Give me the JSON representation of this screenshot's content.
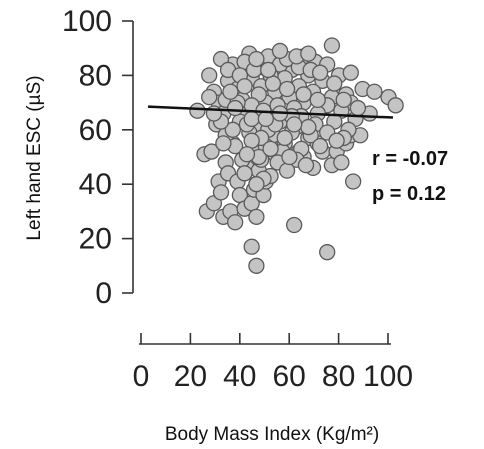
{
  "chart_data": {
    "type": "scatter",
    "xlabel": "Body  Mass  Index (Kg/m²)",
    "ylabel": "Left  hand  ESC (µS)",
    "xlim": [
      0,
      100
    ],
    "ylim": [
      0,
      100
    ],
    "xticks": [
      "0",
      "20",
      "40",
      "60",
      "80",
      "100"
    ],
    "yticks": [
      "0",
      "20",
      "40",
      "60",
      "80",
      "100"
    ],
    "grid": false,
    "annotations": {
      "r": "r = -0.07",
      "p": "p = 0.12"
    },
    "fit_line": {
      "x": [
        0,
        100
      ],
      "y": [
        68.5,
        64.5
      ]
    },
    "points": [
      [
        15,
        67
      ],
      [
        18,
        51
      ],
      [
        19,
        30
      ],
      [
        21,
        52
      ],
      [
        22,
        33
      ],
      [
        24,
        41
      ],
      [
        25,
        37
      ],
      [
        26,
        28
      ],
      [
        27,
        48
      ],
      [
        28,
        44
      ],
      [
        29,
        30
      ],
      [
        30,
        55
      ],
      [
        31,
        26
      ],
      [
        32,
        41
      ],
      [
        33,
        36
      ],
      [
        35,
        31
      ],
      [
        36,
        46
      ],
      [
        38,
        17
      ],
      [
        38,
        33
      ],
      [
        39,
        38
      ],
      [
        40,
        10
      ],
      [
        40,
        28
      ],
      [
        41,
        45
      ],
      [
        42,
        49
      ],
      [
        43,
        36
      ],
      [
        44,
        41
      ],
      [
        45,
        56
      ],
      [
        46,
        43
      ],
      [
        48,
        51
      ],
      [
        50,
        48
      ],
      [
        52,
        55
      ],
      [
        56,
        25
      ],
      [
        58,
        52
      ],
      [
        60,
        50
      ],
      [
        62,
        57
      ],
      [
        64,
        46
      ],
      [
        66,
        55
      ],
      [
        68,
        52
      ],
      [
        70,
        15
      ],
      [
        72,
        47
      ],
      [
        74,
        52
      ],
      [
        76,
        48
      ],
      [
        78,
        55
      ],
      [
        80,
        58
      ],
      [
        81,
        41
      ],
      [
        84,
        58
      ],
      [
        96,
        72
      ],
      [
        99,
        69
      ],
      [
        72,
        91
      ],
      [
        60,
        87
      ],
      [
        37,
        88
      ],
      [
        48,
        85
      ],
      [
        65,
        85
      ],
      [
        30,
        84
      ],
      [
        42,
        83
      ],
      [
        55,
        82
      ],
      [
        20,
        80
      ],
      [
        25,
        86
      ],
      [
        35,
        85
      ],
      [
        45,
        87
      ],
      [
        50,
        84
      ],
      [
        70,
        84
      ],
      [
        75,
        80
      ],
      [
        80,
        81
      ],
      [
        28,
        78
      ],
      [
        38,
        79
      ],
      [
        52,
        79
      ],
      [
        62,
        80
      ],
      [
        68,
        78
      ],
      [
        85,
        75
      ],
      [
        90,
        74
      ],
      [
        22,
        74
      ],
      [
        32,
        75
      ],
      [
        42,
        76
      ],
      [
        48,
        74
      ],
      [
        58,
        76
      ],
      [
        64,
        74
      ],
      [
        72,
        72
      ],
      [
        78,
        73
      ],
      [
        24,
        70
      ],
      [
        34,
        71
      ],
      [
        44,
        70
      ],
      [
        54,
        72
      ],
      [
        60,
        70
      ],
      [
        70,
        69
      ],
      [
        80,
        70
      ],
      [
        88,
        66
      ],
      [
        26,
        66
      ],
      [
        36,
        67
      ],
      [
        46,
        66
      ],
      [
        56,
        68
      ],
      [
        66,
        66
      ],
      [
        76,
        67
      ],
      [
        82,
        64
      ],
      [
        23,
        62
      ],
      [
        33,
        63
      ],
      [
        40,
        62
      ],
      [
        50,
        63
      ],
      [
        57,
        61
      ],
      [
        65,
        62
      ],
      [
        73,
        63
      ],
      [
        79,
        60
      ],
      [
        27,
        58
      ],
      [
        37,
        59
      ],
      [
        47,
        58
      ],
      [
        55,
        59
      ],
      [
        63,
        58
      ],
      [
        70,
        59
      ],
      [
        77,
        57
      ],
      [
        31,
        54
      ],
      [
        39,
        53
      ],
      [
        44,
        54
      ],
      [
        51,
        52
      ],
      [
        59,
        53
      ],
      [
        67,
        54
      ],
      [
        74,
        56
      ],
      [
        34,
        49
      ],
      [
        41,
        50
      ],
      [
        49,
        48
      ],
      [
        57,
        49
      ],
      [
        35,
        44
      ],
      [
        43,
        42
      ],
      [
        53,
        45
      ],
      [
        61,
        47
      ],
      [
        28,
        82
      ],
      [
        33,
        80
      ],
      [
        39,
        82
      ],
      [
        46,
        80
      ],
      [
        53,
        86
      ],
      [
        58,
        83
      ],
      [
        63,
        82
      ],
      [
        35,
        76
      ],
      [
        41,
        73
      ],
      [
        47,
        77
      ],
      [
        53,
        75
      ],
      [
        27,
        71
      ],
      [
        38,
        69
      ],
      [
        43,
        67
      ],
      [
        49,
        69
      ],
      [
        59,
        65
      ],
      [
        30,
        60
      ],
      [
        36,
        62
      ],
      [
        45,
        60
      ],
      [
        52,
        57
      ],
      [
        62,
        61
      ],
      [
        42,
        57
      ],
      [
        48,
        62
      ],
      [
        55,
        65
      ],
      [
        60,
        73
      ],
      [
        66,
        71
      ],
      [
        38,
        64
      ],
      [
        44,
        64
      ],
      [
        50,
        66
      ],
      [
        56,
        62
      ],
      [
        32,
        70
      ],
      [
        29,
        74
      ],
      [
        40,
        86
      ],
      [
        45,
        82
      ],
      [
        50,
        89
      ],
      [
        57,
        87
      ],
      [
        62,
        88
      ],
      [
        67,
        81
      ],
      [
        73,
        77
      ],
      [
        77,
        71
      ],
      [
        83,
        68
      ],
      [
        25,
        63
      ],
      [
        31,
        68
      ],
      [
        38,
        56
      ],
      [
        46,
        53
      ],
      [
        54,
        50
      ],
      [
        40,
        40
      ],
      [
        36,
        51
      ],
      [
        26,
        55
      ],
      [
        22,
        66
      ],
      [
        20,
        72
      ]
    ]
  }
}
